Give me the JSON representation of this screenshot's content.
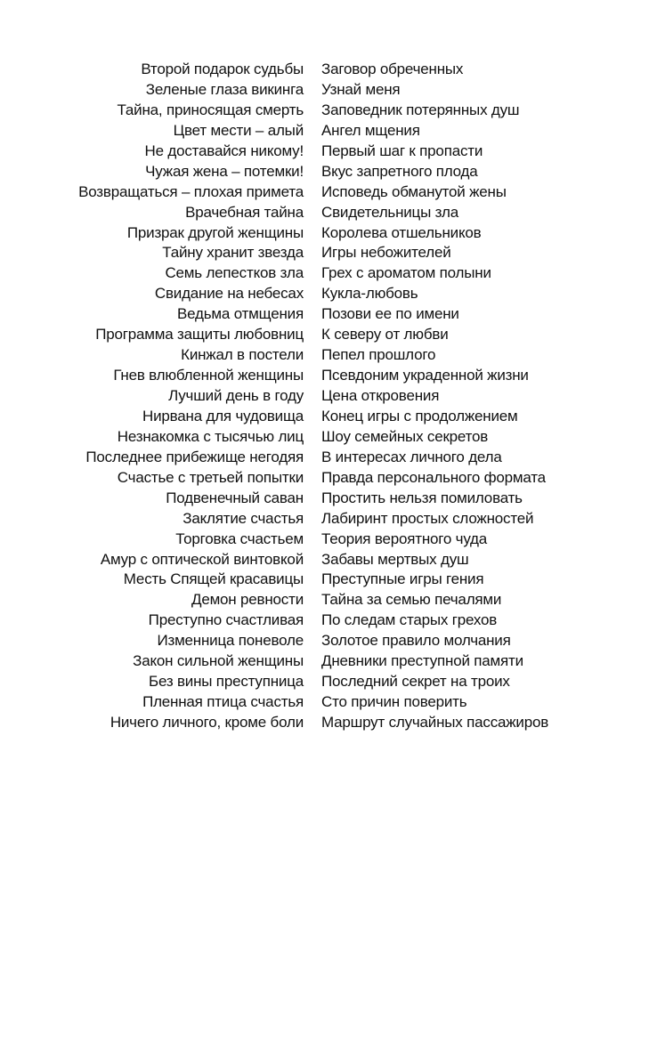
{
  "left_column": [
    "Второй подарок судьбы",
    "Зеленые глаза викинга",
    "Тайна, приносящая смерть",
    "Цвет мести – алый",
    "Не доставайся никому!",
    "Чужая жена – потемки!",
    "Возвращаться – плохая примета",
    "Врачебная тайна",
    "Призрак другой женщины",
    "Тайну хранит звезда",
    "Семь лепестков зла",
    "Свидание на небесах",
    "Ведьма отмщения",
    "Программа защиты любовниц",
    "Кинжал в постели",
    "Гнев влюбленной женщины",
    "Лучший день в году",
    "Нирвана для чудовища",
    "Незнакомка с тысячью лиц",
    "Последнее прибежище негодяя",
    "Счастье с третьей попытки",
    "Подвенечный саван",
    "Заклятие счастья",
    "Торговка счастьем",
    "Амур с оптической винтовкой",
    "Месть Спящей красавицы",
    "Демон ревности",
    "Преступно счастливая",
    "Изменница поневоле",
    "Закон сильной женщины",
    "Без вины преступница",
    "Пленная птица счастья",
    "Ничего личного, кроме боли"
  ],
  "right_column": [
    "Заговор обреченных",
    "Узнай меня",
    "Заповедник потерянных душ",
    "Ангел мщения",
    "Первый шаг к пропасти",
    "Вкус запретного плода",
    "Исповедь обманутой жены",
    "Свидетельницы зла",
    "Королева отшельников",
    "Игры небожителей",
    "Грех с ароматом полыни",
    "Кукла-любовь",
    "Позови ее по имени",
    "К северу от любви",
    "Пепел прошлого",
    "Псевдоним украденной жизни",
    "Цена откровения",
    "Конец игры с продолжением",
    "Шоу семейных секретов",
    "В интересах личного дела",
    "Правда персонального формата",
    "Простить нельзя помиловать",
    "Лабиринт простых сложностей",
    "Теория вероятного чуда",
    "Забавы мертвых душ",
    "Преступные игры гения",
    "Тайна за семью печалями",
    "По следам старых грехов",
    "Золотое правило молчания",
    "Дневники преступной памяти",
    "Последний секрет на троих",
    "Сто причин поверить",
    "Маршрут случайных пассажиров"
  ]
}
